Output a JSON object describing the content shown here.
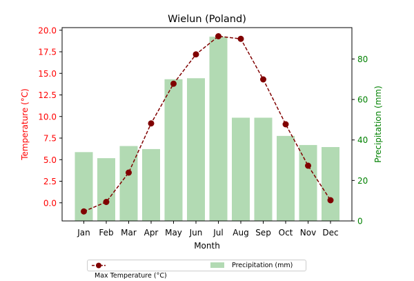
{
  "chart_data": {
    "type": "bar+line",
    "title": "Wielun (Poland)",
    "xlabel": "Month",
    "ylabel_left": "Temperature (°C)",
    "ylabel_right": "Precipitation (mm)",
    "categories": [
      "Jan",
      "Feb",
      "Mar",
      "Apr",
      "May",
      "Jun",
      "Jul",
      "Aug",
      "Sep",
      "Oct",
      "Nov",
      "Dec"
    ],
    "series": [
      {
        "name": "Max Temperature (°C)",
        "type": "line",
        "axis": "left",
        "color": "#800000",
        "values": [
          -1.0,
          0.1,
          3.5,
          9.2,
          13.8,
          17.2,
          19.3,
          19.0,
          14.3,
          9.1,
          4.3,
          0.3
        ]
      },
      {
        "name": "Precipitation (mm)",
        "type": "bar",
        "axis": "right",
        "color": "#b2dab3",
        "values": [
          34,
          31,
          37,
          35.5,
          70,
          70.5,
          91,
          51,
          51,
          42,
          37.5,
          36.5
        ]
      }
    ],
    "y_left": {
      "lim": [
        -2.1,
        20.3
      ],
      "ticks": [
        "0.0",
        "2.5",
        "5.0",
        "7.5",
        "10.0",
        "12.5",
        "15.0",
        "17.5",
        "20.0"
      ],
      "color": "#ff0000"
    },
    "y_right": {
      "lim": [
        0,
        95.5
      ],
      "ticks": [
        "0",
        "20",
        "40",
        "60",
        "80"
      ],
      "color": "#008000"
    },
    "grid": false,
    "legend_position": "bottom-center"
  }
}
